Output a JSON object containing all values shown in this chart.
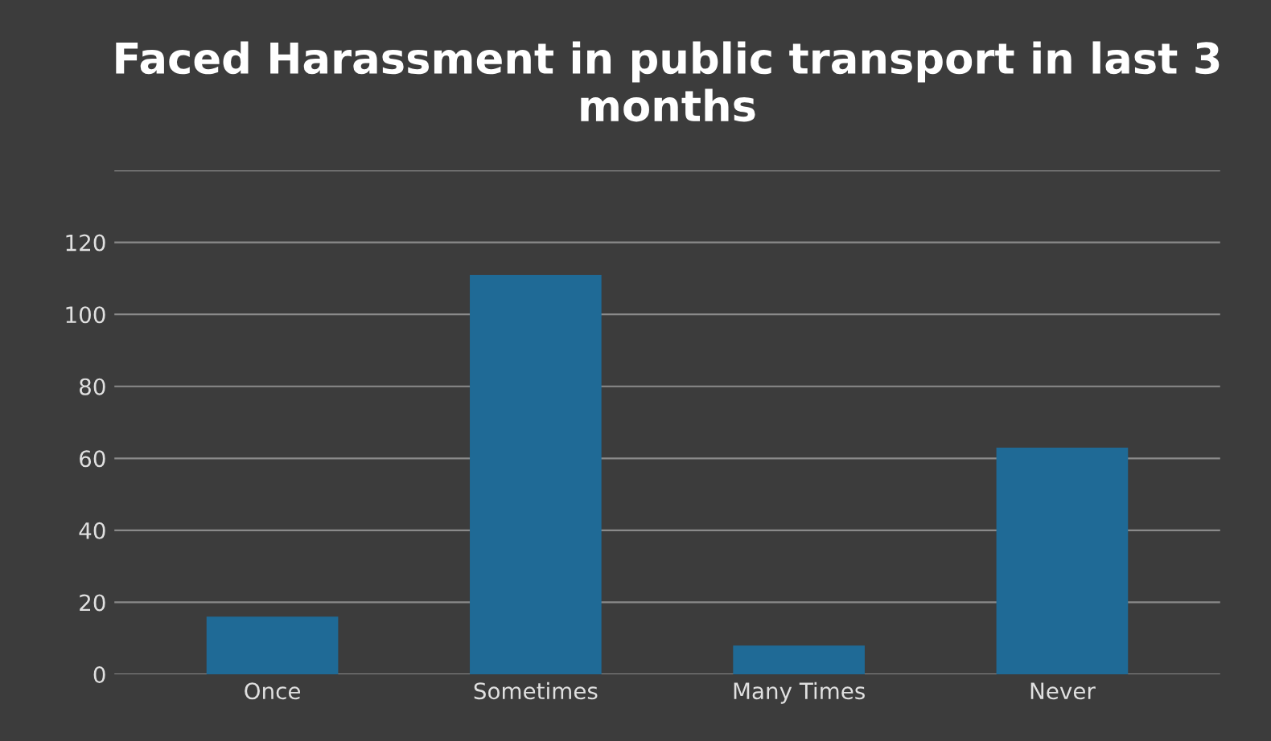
{
  "chart_data": {
    "type": "bar",
    "title": "Faced Harassment in public transport in last 3 months",
    "categories": [
      "Once",
      "Sometimes",
      "Many Times",
      "Never"
    ],
    "values": [
      16,
      111,
      8,
      63
    ],
    "color": "#1f6a96",
    "ylim": [
      0,
      140
    ],
    "yticks": [
      0,
      20,
      40,
      60,
      80,
      100,
      120,
      {
        "value": 140,
        "label": null
      }
    ],
    "grid": "y"
  }
}
